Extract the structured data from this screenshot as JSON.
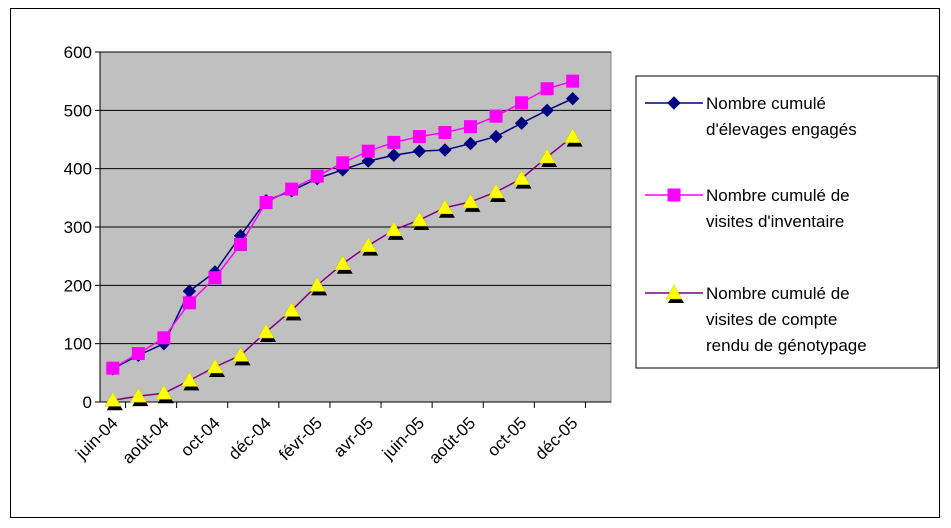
{
  "chart_data": {
    "type": "line",
    "title": "",
    "xlabel": "",
    "ylabel": "",
    "ylim": [
      0,
      600
    ],
    "yticks": [
      0,
      100,
      200,
      300,
      400,
      500,
      600
    ],
    "grid": true,
    "legend_position": "right",
    "plot_background": "#c0c0c0",
    "x_tick_labels": [
      "juin-04",
      "août-04",
      "oct-04",
      "déc-04",
      "févr-05",
      "avr-05",
      "juin-05",
      "août-05",
      "oct-05",
      "déc-05"
    ],
    "x": [
      "juin-04",
      "juil-04",
      "août-04",
      "sept-04",
      "oct-04",
      "nov-04",
      "déc-04",
      "janv-05",
      "févr-05",
      "mars-05",
      "avr-05",
      "mai-05",
      "juin-05",
      "juil-05",
      "août-05",
      "sept-05",
      "oct-05",
      "nov-05",
      "déc-05",
      "janv-06"
    ],
    "series": [
      {
        "name_lines": [
          "Nombre cumulé",
          "d'élevages engagés"
        ],
        "color": "#000080",
        "marker": "diamond",
        "values": [
          57,
          80,
          100,
          190,
          223,
          285,
          345,
          362,
          383,
          398,
          413,
          423,
          430,
          432,
          443,
          455,
          478,
          500,
          520,
          null
        ]
      },
      {
        "name_lines": [
          "Nombre cumulé de",
          "visites d'inventaire"
        ],
        "color": "#ff00ff",
        "marker": "square",
        "values": [
          58,
          83,
          110,
          170,
          213,
          270,
          342,
          365,
          387,
          410,
          430,
          445,
          455,
          462,
          472,
          490,
          513,
          537,
          550,
          null
        ]
      },
      {
        "name_lines": [
          "Nombre cumulé de",
          "visites de compte",
          "rendu de génotypage"
        ],
        "color": "#800080",
        "marker": "triangle",
        "values": [
          3,
          10,
          15,
          37,
          60,
          80,
          120,
          157,
          200,
          237,
          268,
          295,
          312,
          333,
          343,
          360,
          383,
          420,
          455,
          null
        ]
      }
    ]
  }
}
